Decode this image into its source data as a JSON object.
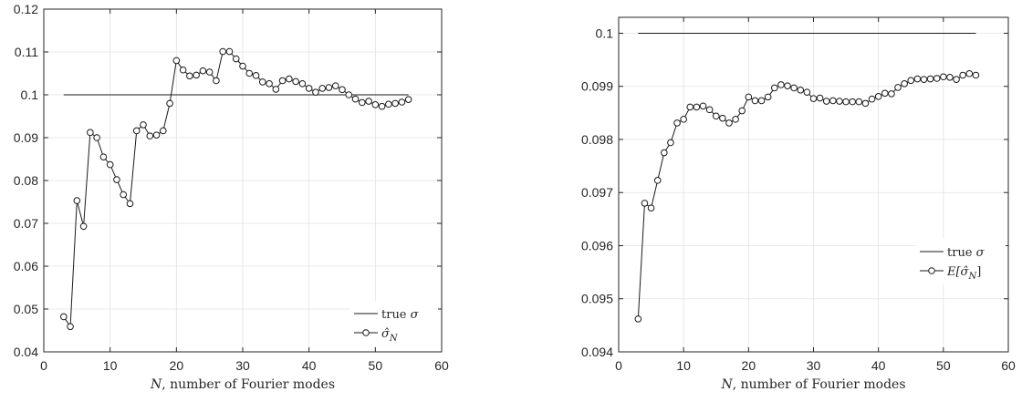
{
  "chart_data": [
    {
      "type": "line",
      "title": "",
      "xlabel_var": "N",
      "xlabel_rest": ", number of Fourier modes",
      "ylabel": "",
      "xlim": [
        0,
        60
      ],
      "ylim": [
        0.04,
        0.12
      ],
      "xticks": [
        0,
        10,
        20,
        30,
        40,
        50,
        60
      ],
      "yticks": [
        0.04,
        0.05,
        0.06,
        0.07,
        0.08,
        0.09,
        0.1,
        0.11,
        0.12
      ],
      "ytick_labels": [
        "0.04",
        "0.05",
        "0.06",
        "0.07",
        "0.08",
        "0.09",
        "0.1",
        "0.11",
        "0.12"
      ],
      "grid": true,
      "legend_placement": "bottom-right",
      "series": [
        {
          "name": "true σ",
          "name_prefix": "true ",
          "name_var": "σ",
          "marker": "none",
          "x": [
            3,
            55
          ],
          "y": [
            0.1,
            0.1
          ]
        },
        {
          "name": "σ̂_N",
          "name_var": "σ̂",
          "name_sub": "N",
          "marker": "circle",
          "x": [
            3,
            4,
            5,
            6,
            7,
            8,
            9,
            10,
            11,
            12,
            13,
            14,
            15,
            16,
            17,
            18,
            19,
            20,
            21,
            22,
            23,
            24,
            25,
            26,
            27,
            28,
            29,
            30,
            31,
            32,
            33,
            34,
            35,
            36,
            37,
            38,
            39,
            40,
            41,
            42,
            43,
            44,
            45,
            46,
            47,
            48,
            49,
            50,
            51,
            52,
            53,
            54,
            55
          ],
          "y": [
            0.0482,
            0.0459,
            0.0753,
            0.0693,
            0.0912,
            0.09,
            0.0855,
            0.0837,
            0.0802,
            0.0767,
            0.0746,
            0.0916,
            0.093,
            0.0904,
            0.0906,
            0.0916,
            0.098,
            0.108,
            0.1058,
            0.1044,
            0.1046,
            0.1056,
            0.1053,
            0.1033,
            0.1101,
            0.1101,
            0.1084,
            0.1067,
            0.105,
            0.1045,
            0.103,
            0.1026,
            0.1013,
            0.1033,
            0.1037,
            0.1031,
            0.1026,
            0.1015,
            0.1006,
            0.1015,
            0.1017,
            0.1021,
            0.1012,
            0.1,
            0.099,
            0.0982,
            0.0985,
            0.0977,
            0.0973,
            0.0978,
            0.098,
            0.0983,
            0.0989
          ]
        }
      ]
    },
    {
      "type": "line",
      "title": "",
      "xlabel_var": "N",
      "xlabel_rest": ", number of Fourier modes",
      "ylabel": "",
      "xlim": [
        0,
        60
      ],
      "ylim": [
        0.094,
        0.1003
      ],
      "xticks": [
        0,
        10,
        20,
        30,
        40,
        50,
        60
      ],
      "yticks": [
        0.094,
        0.095,
        0.096,
        0.097,
        0.098,
        0.099,
        0.1
      ],
      "ytick_labels": [
        "0.094",
        "0.095",
        "0.096",
        "0.097",
        "0.098",
        "0.099",
        "0.1"
      ],
      "grid": true,
      "legend_placement": "bottom-right",
      "series": [
        {
          "name": "true σ",
          "name_prefix": "true ",
          "name_var": "σ",
          "marker": "none",
          "x": [
            3,
            55
          ],
          "y": [
            0.1,
            0.1
          ]
        },
        {
          "name": "E[σ̂_N]",
          "name_var": "E[σ̂",
          "name_sub": "N",
          "name_suffix": "]",
          "marker": "circle",
          "x": [
            3,
            4,
            5,
            6,
            7,
            8,
            9,
            10,
            11,
            12,
            13,
            14,
            15,
            16,
            17,
            18,
            19,
            20,
            21,
            22,
            23,
            24,
            25,
            26,
            27,
            28,
            29,
            30,
            31,
            32,
            33,
            34,
            35,
            36,
            37,
            38,
            39,
            40,
            41,
            42,
            43,
            44,
            45,
            46,
            47,
            48,
            49,
            50,
            51,
            52,
            53,
            54,
            55
          ],
          "y": [
            0.09462,
            0.0968,
            0.09671,
            0.09723,
            0.09775,
            0.09794,
            0.09831,
            0.09838,
            0.09861,
            0.09861,
            0.09863,
            0.09856,
            0.09844,
            0.0984,
            0.09831,
            0.09838,
            0.09854,
            0.0988,
            0.09873,
            0.09873,
            0.0988,
            0.09897,
            0.09903,
            0.09901,
            0.09897,
            0.09893,
            0.09889,
            0.09877,
            0.09878,
            0.09872,
            0.09873,
            0.09872,
            0.09871,
            0.09871,
            0.09871,
            0.09868,
            0.09876,
            0.09881,
            0.09887,
            0.09886,
            0.09898,
            0.09905,
            0.09911,
            0.09914,
            0.09913,
            0.09914,
            0.09915,
            0.09918,
            0.09917,
            0.09913,
            0.09921,
            0.09924,
            0.09921
          ]
        }
      ]
    }
  ]
}
